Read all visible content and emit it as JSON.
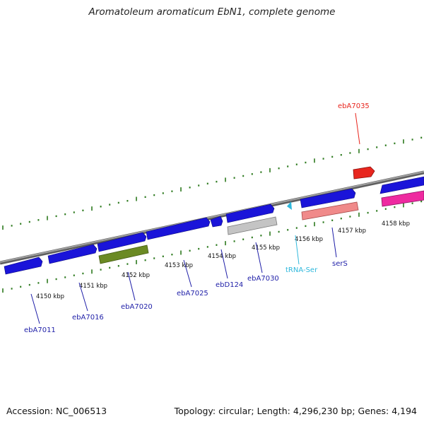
{
  "title": "Aromatoleum aromaticum EbN1, complete genome",
  "footer": {
    "accession": "Accession: NC_006513",
    "info": "Topology: circular; Length: 4,296,230 bp; Genes: 4,194"
  },
  "colors": {
    "cds": "#1a14d9",
    "backbone": "#8a8a8a",
    "tick": "#2d7a1e",
    "gene_label": "#1f1fa8",
    "trna": "#2fb8dc",
    "highlight": "#e8261e",
    "rrna": "#f08a8a",
    "olive": "#6b8a24",
    "grey": "#c4c4c4",
    "magenta": "#ee2aa0"
  },
  "scale_labels": [
    "4150 kbp",
    "4151 kbp",
    "4152 kbp",
    "4153 kbp",
    "4154 kbp",
    "4155 kbp",
    "4156 kbp",
    "4157 kbp",
    "4158 kbp"
  ],
  "gene_labels": [
    {
      "text": "ebA7011",
      "color": "gene_label"
    },
    {
      "text": "ebA7016",
      "color": "gene_label"
    },
    {
      "text": "ebA7020",
      "color": "gene_label"
    },
    {
      "text": "ebA7025",
      "color": "gene_label"
    },
    {
      "text": "ebD124",
      "color": "gene_label"
    },
    {
      "text": "ebA7030",
      "color": "gene_label"
    },
    {
      "text": "tRNA-Ser",
      "color": "trna"
    },
    {
      "text": "serS",
      "color": "gene_label"
    },
    {
      "text": "ebA7035",
      "color": "highlight"
    }
  ]
}
